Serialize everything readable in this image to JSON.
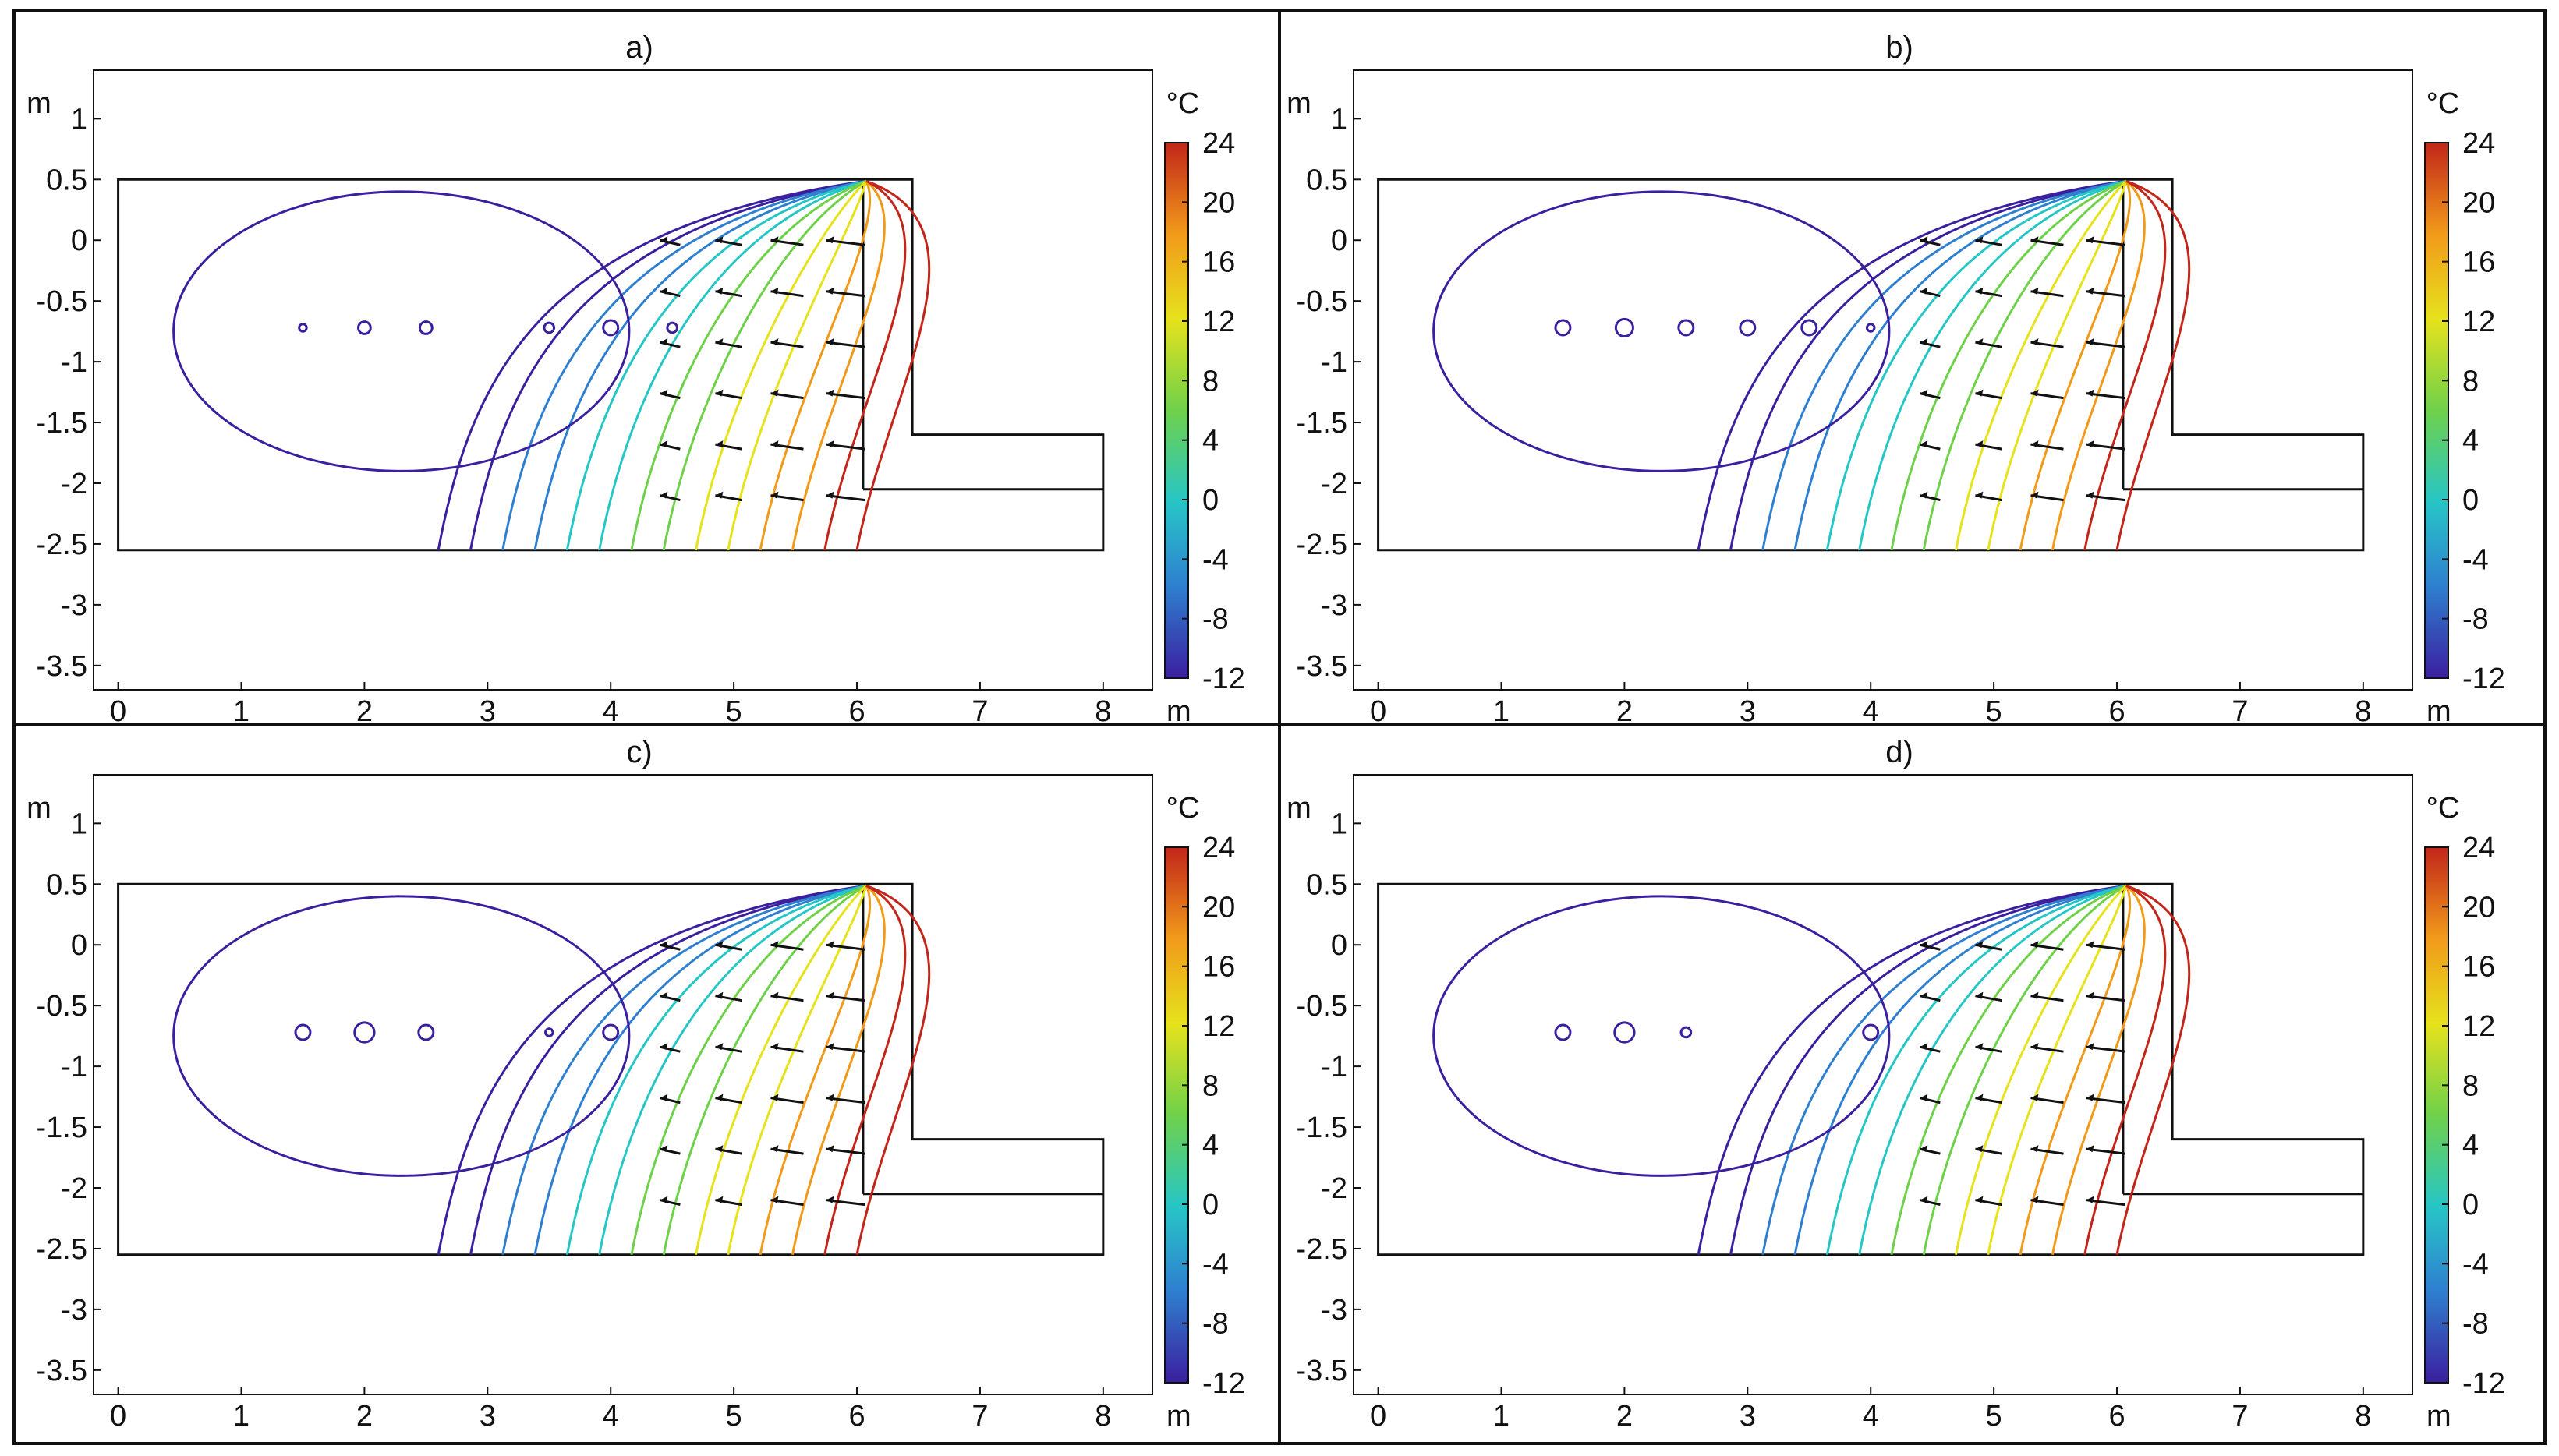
{
  "chart_data": [
    {
      "type": "contour",
      "panel_label": "a)",
      "xlabel": "m",
      "ylabel": "m",
      "xlim": [
        -0.2,
        8.4
      ],
      "ylim": [
        -3.7,
        1.4
      ],
      "x_ticks": [
        0,
        1,
        2,
        3,
        4,
        5,
        6,
        7,
        8
      ],
      "y_ticks": [
        1,
        0.5,
        0,
        -0.5,
        -1,
        -1.5,
        -2,
        -2.5,
        -3,
        -3.5
      ],
      "colorbar": {
        "unit": "°C",
        "min": -12,
        "max": 24,
        "ticks": [
          24,
          20,
          16,
          12,
          8,
          4,
          0,
          -4,
          -8,
          -12
        ]
      },
      "pipes": [
        {
          "x": 1.5,
          "y": -0.72,
          "r": 0.03
        },
        {
          "x": 2.0,
          "y": -0.72,
          "r": 0.05
        },
        {
          "x": 2.5,
          "y": -0.72,
          "r": 0.05
        },
        {
          "x": 3.5,
          "y": -0.72,
          "r": 0.04
        },
        {
          "x": 4.0,
          "y": -0.72,
          "r": 0.06
        },
        {
          "x": 4.5,
          "y": -0.72,
          "r": 0.04
        }
      ]
    },
    {
      "type": "contour",
      "panel_label": "b)",
      "xlabel": "m",
      "ylabel": "m",
      "xlim": [
        -0.2,
        8.4
      ],
      "ylim": [
        -3.7,
        1.4
      ],
      "x_ticks": [
        0,
        1,
        2,
        3,
        4,
        5,
        6,
        7,
        8
      ],
      "y_ticks": [
        1,
        0.5,
        0,
        -0.5,
        -1,
        -1.5,
        -2,
        -2.5,
        -3,
        -3.5
      ],
      "colorbar": {
        "unit": "°C",
        "min": -12,
        "max": 24,
        "ticks": [
          24,
          20,
          16,
          12,
          8,
          4,
          0,
          -4,
          -8,
          -12
        ]
      },
      "pipes": [
        {
          "x": 1.5,
          "y": -0.72,
          "r": 0.06
        },
        {
          "x": 2.0,
          "y": -0.72,
          "r": 0.07
        },
        {
          "x": 2.5,
          "y": -0.72,
          "r": 0.06
        },
        {
          "x": 3.0,
          "y": -0.72,
          "r": 0.06
        },
        {
          "x": 3.5,
          "y": -0.72,
          "r": 0.06
        },
        {
          "x": 4.0,
          "y": -0.72,
          "r": 0.03
        }
      ]
    },
    {
      "type": "contour",
      "panel_label": "c)",
      "xlabel": "m",
      "ylabel": "m",
      "xlim": [
        -0.2,
        8.4
      ],
      "ylim": [
        -3.7,
        1.4
      ],
      "x_ticks": [
        0,
        1,
        2,
        3,
        4,
        5,
        6,
        7,
        8
      ],
      "y_ticks": [
        1,
        0.5,
        0,
        -0.5,
        -1,
        -1.5,
        -2,
        -2.5,
        -3,
        -3.5
      ],
      "colorbar": {
        "unit": "°C",
        "min": -12,
        "max": 24,
        "ticks": [
          24,
          20,
          16,
          12,
          8,
          4,
          0,
          -4,
          -8,
          -12
        ]
      },
      "pipes": [
        {
          "x": 1.5,
          "y": -0.72,
          "r": 0.06
        },
        {
          "x": 2.0,
          "y": -0.72,
          "r": 0.08
        },
        {
          "x": 2.5,
          "y": -0.72,
          "r": 0.06
        },
        {
          "x": 3.5,
          "y": -0.72,
          "r": 0.03
        },
        {
          "x": 4.0,
          "y": -0.72,
          "r": 0.06
        }
      ]
    },
    {
      "type": "contour",
      "panel_label": "d)",
      "xlabel": "m",
      "ylabel": "m",
      "xlim": [
        -0.2,
        8.4
      ],
      "ylim": [
        -3.7,
        1.4
      ],
      "x_ticks": [
        0,
        1,
        2,
        3,
        4,
        5,
        6,
        7,
        8
      ],
      "y_ticks": [
        1,
        0.5,
        0,
        -0.5,
        -1,
        -1.5,
        -2,
        -2.5,
        -3,
        -3.5
      ],
      "colorbar": {
        "unit": "°C",
        "min": -12,
        "max": 24,
        "ticks": [
          24,
          20,
          16,
          12,
          8,
          4,
          0,
          -4,
          -8,
          -12
        ]
      },
      "pipes": [
        {
          "x": 1.5,
          "y": -0.72,
          "r": 0.06
        },
        {
          "x": 2.0,
          "y": -0.72,
          "r": 0.08
        },
        {
          "x": 2.5,
          "y": -0.72,
          "r": 0.04
        },
        {
          "x": 4.0,
          "y": -0.72,
          "r": 0.06
        }
      ]
    }
  ],
  "colors": {
    "colorbar_stops": [
      "#3b1f9e",
      "#2f7fd0",
      "#26c6c6",
      "#6fd14a",
      "#e6e21c",
      "#f19a1a",
      "#c2261a"
    ],
    "frame": "#111111"
  }
}
